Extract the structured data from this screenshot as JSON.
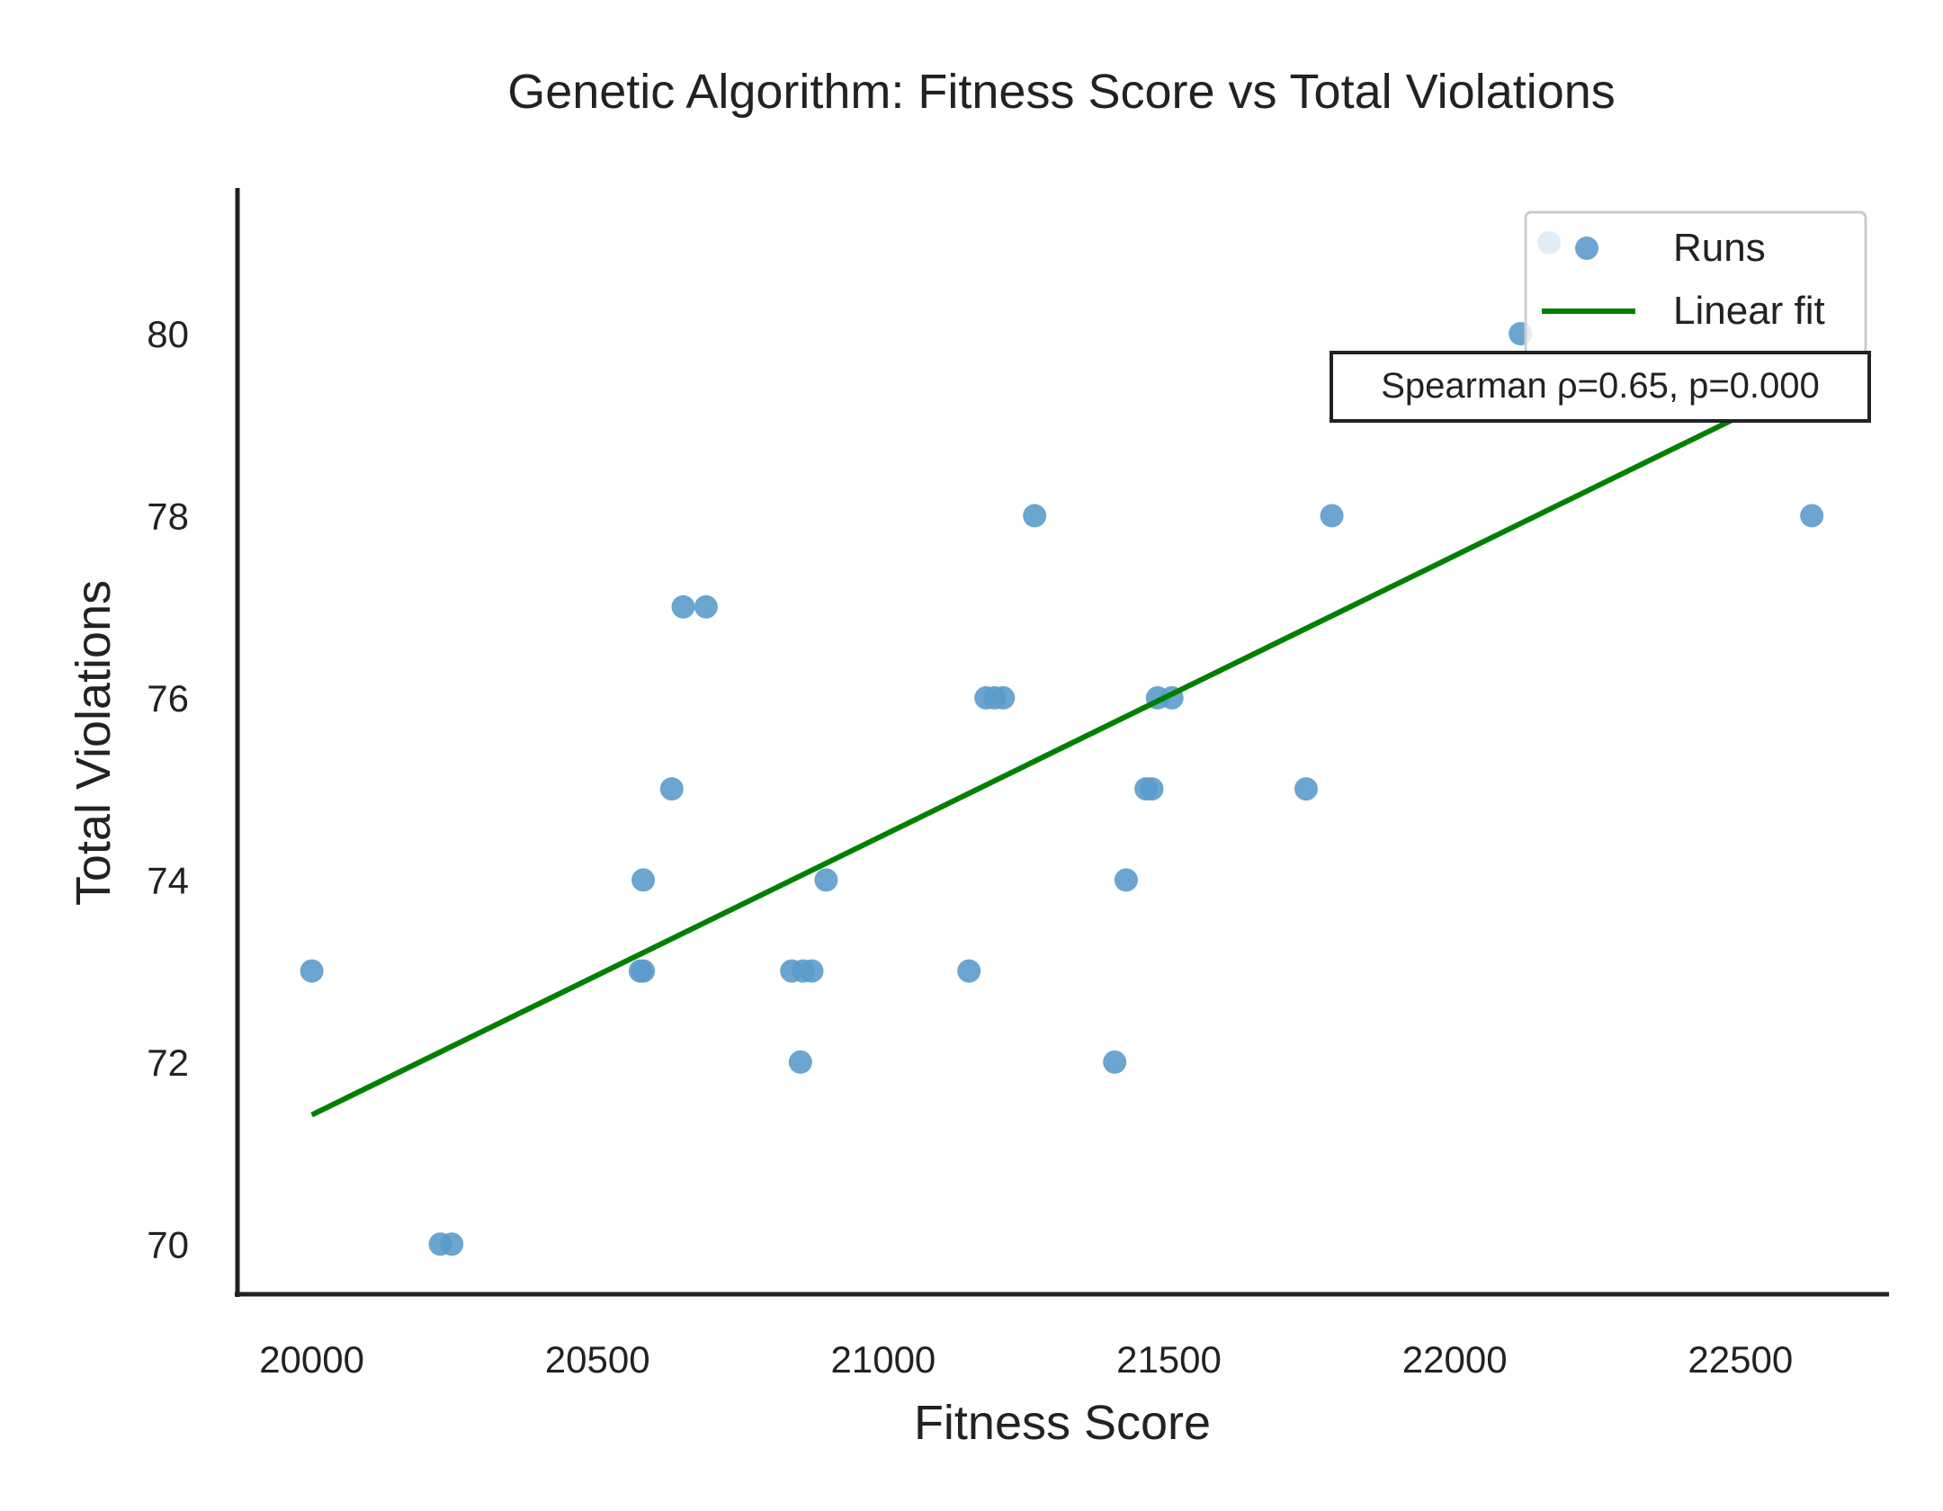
{
  "chart_data": {
    "type": "scatter",
    "title": "Genetic Algorithm: Fitness Score vs Total Violations",
    "xlabel": "Fitness Score",
    "ylabel": "Total Violations",
    "xlim": [
      19870,
      22760
    ],
    "ylim": [
      69.45,
      81.6
    ],
    "xticks": [
      20000,
      20500,
      21000,
      21500,
      22000,
      22500
    ],
    "yticks": [
      70,
      72,
      74,
      76,
      78,
      80
    ],
    "grid": false,
    "legend_position": "top-right",
    "series": [
      {
        "name": "Runs",
        "kind": "scatter",
        "color": "#5b9bcb",
        "points": [
          [
            20000,
            73
          ],
          [
            20225,
            70
          ],
          [
            20245,
            70
          ],
          [
            20575,
            73
          ],
          [
            20580,
            73
          ],
          [
            20580,
            74
          ],
          [
            20630,
            75
          ],
          [
            20650,
            77
          ],
          [
            20690,
            77
          ],
          [
            20840,
            73
          ],
          [
            20855,
            72
          ],
          [
            20860,
            73
          ],
          [
            20875,
            73
          ],
          [
            20900,
            74
          ],
          [
            21150,
            73
          ],
          [
            21180,
            76
          ],
          [
            21195,
            76
          ],
          [
            21210,
            76
          ],
          [
            21265,
            78
          ],
          [
            21405,
            72
          ],
          [
            21425,
            74
          ],
          [
            21460,
            75
          ],
          [
            21470,
            75
          ],
          [
            21480,
            76
          ],
          [
            21505,
            76
          ],
          [
            21740,
            75
          ],
          [
            21785,
            78
          ],
          [
            22115,
            80
          ],
          [
            22165,
            81
          ],
          [
            22625,
            78
          ]
        ]
      },
      {
        "name": "Linear fit",
        "kind": "line",
        "color": "#008000",
        "x": [
          20000,
          22625
        ],
        "y": [
          71.42,
          79.48
        ]
      }
    ],
    "annotation": "Spearman ρ=0.65, p=0.000"
  }
}
